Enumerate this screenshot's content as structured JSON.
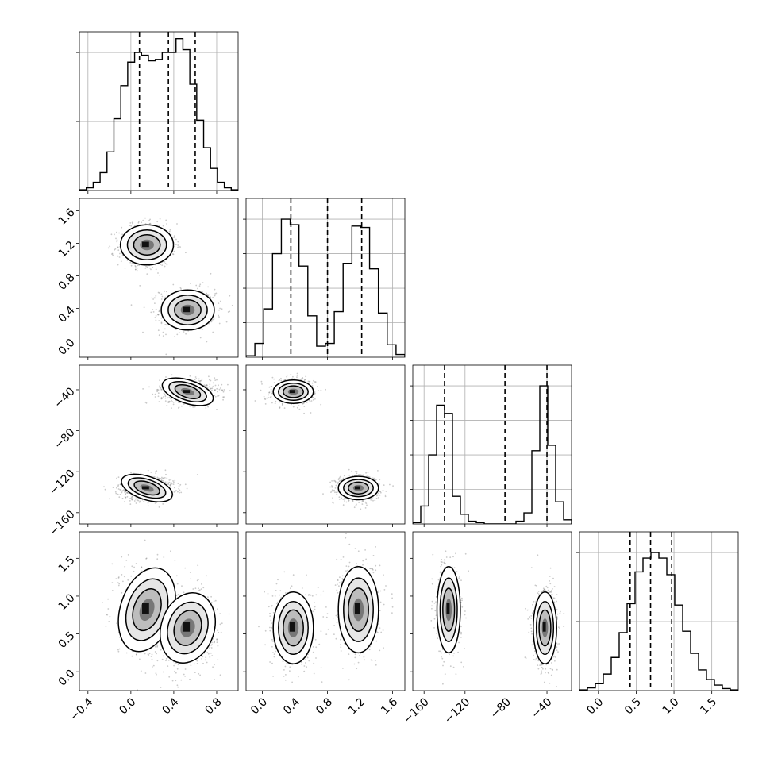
{
  "chart_data": {
    "type": "corner",
    "grid": true,
    "parameters": [
      {
        "index": 0,
        "range": [
          -0.48,
          1.0
        ],
        "ticks": [
          -0.4,
          0.0,
          0.4,
          0.8
        ],
        "tick_labels": [
          "−0.4",
          "0.0",
          "0.4",
          "0.8"
        ],
        "quantiles": [
          0.08,
          0.35,
          0.6
        ],
        "histogram": [
          0.005,
          0.02,
          0.06,
          0.13,
          0.28,
          0.52,
          0.76,
          0.93,
          1.0,
          0.98,
          0.94,
          0.95,
          1.0,
          1.0,
          1.1,
          1.02,
          0.77,
          0.51,
          0.31,
          0.16,
          0.06,
          0.02,
          0.005
        ]
      },
      {
        "index": 1,
        "range": [
          -0.2,
          1.75
        ],
        "ticks": [
          0.0,
          0.4,
          0.8,
          1.2,
          1.6
        ],
        "tick_labels": [
          "0.0",
          "0.4",
          "0.8",
          "1.2",
          "1.6"
        ],
        "quantiles": [
          0.35,
          0.8,
          1.22
        ],
        "histogram": [
          0.01,
          0.1,
          0.35,
          0.75,
          1.0,
          0.96,
          0.66,
          0.3,
          0.08,
          0.1,
          0.33,
          0.68,
          0.95,
          0.94,
          0.64,
          0.32,
          0.09,
          0.02
        ]
      },
      {
        "index": 2,
        "range": [
          -171,
          -16
        ],
        "ticks": [
          -160,
          -120,
          -80,
          -40
        ],
        "tick_labels": [
          "−160",
          "−120",
          "−80",
          "−40"
        ],
        "quantiles": [
          -140,
          -81,
          -40
        ],
        "histogram": [
          0.01,
          0.13,
          0.5,
          0.86,
          0.8,
          0.2,
          0.07,
          0.02,
          0.01,
          0.0,
          0.0,
          0.0,
          0.0,
          0.02,
          0.08,
          0.53,
          1.0,
          0.57,
          0.16,
          0.03
        ]
      },
      {
        "index": 3,
        "range": [
          -0.25,
          1.85
        ],
        "ticks": [
          0.0,
          0.5,
          1.0,
          1.5
        ],
        "tick_labels": [
          "0.0",
          "0.5",
          "1.0",
          "1.5"
        ],
        "quantiles": [
          0.42,
          0.69,
          0.97
        ],
        "histogram": [
          0.005,
          0.02,
          0.05,
          0.12,
          0.24,
          0.42,
          0.63,
          0.86,
          0.96,
          1.0,
          0.96,
          0.84,
          0.62,
          0.43,
          0.27,
          0.15,
          0.08,
          0.04,
          0.015,
          0.005
        ]
      }
    ],
    "samples": {
      "clusters": [
        {
          "mean": [
            0.15,
            1.18,
            -136,
            0.82
          ],
          "sd": [
            0.13,
            0.13,
            6,
            0.3
          ],
          "weight": 0.5
        },
        {
          "mean": [
            0.53,
            0.38,
            -42,
            0.58
          ],
          "sd": [
            0.13,
            0.13,
            6,
            0.25
          ],
          "weight": 0.5
        }
      ]
    }
  }
}
